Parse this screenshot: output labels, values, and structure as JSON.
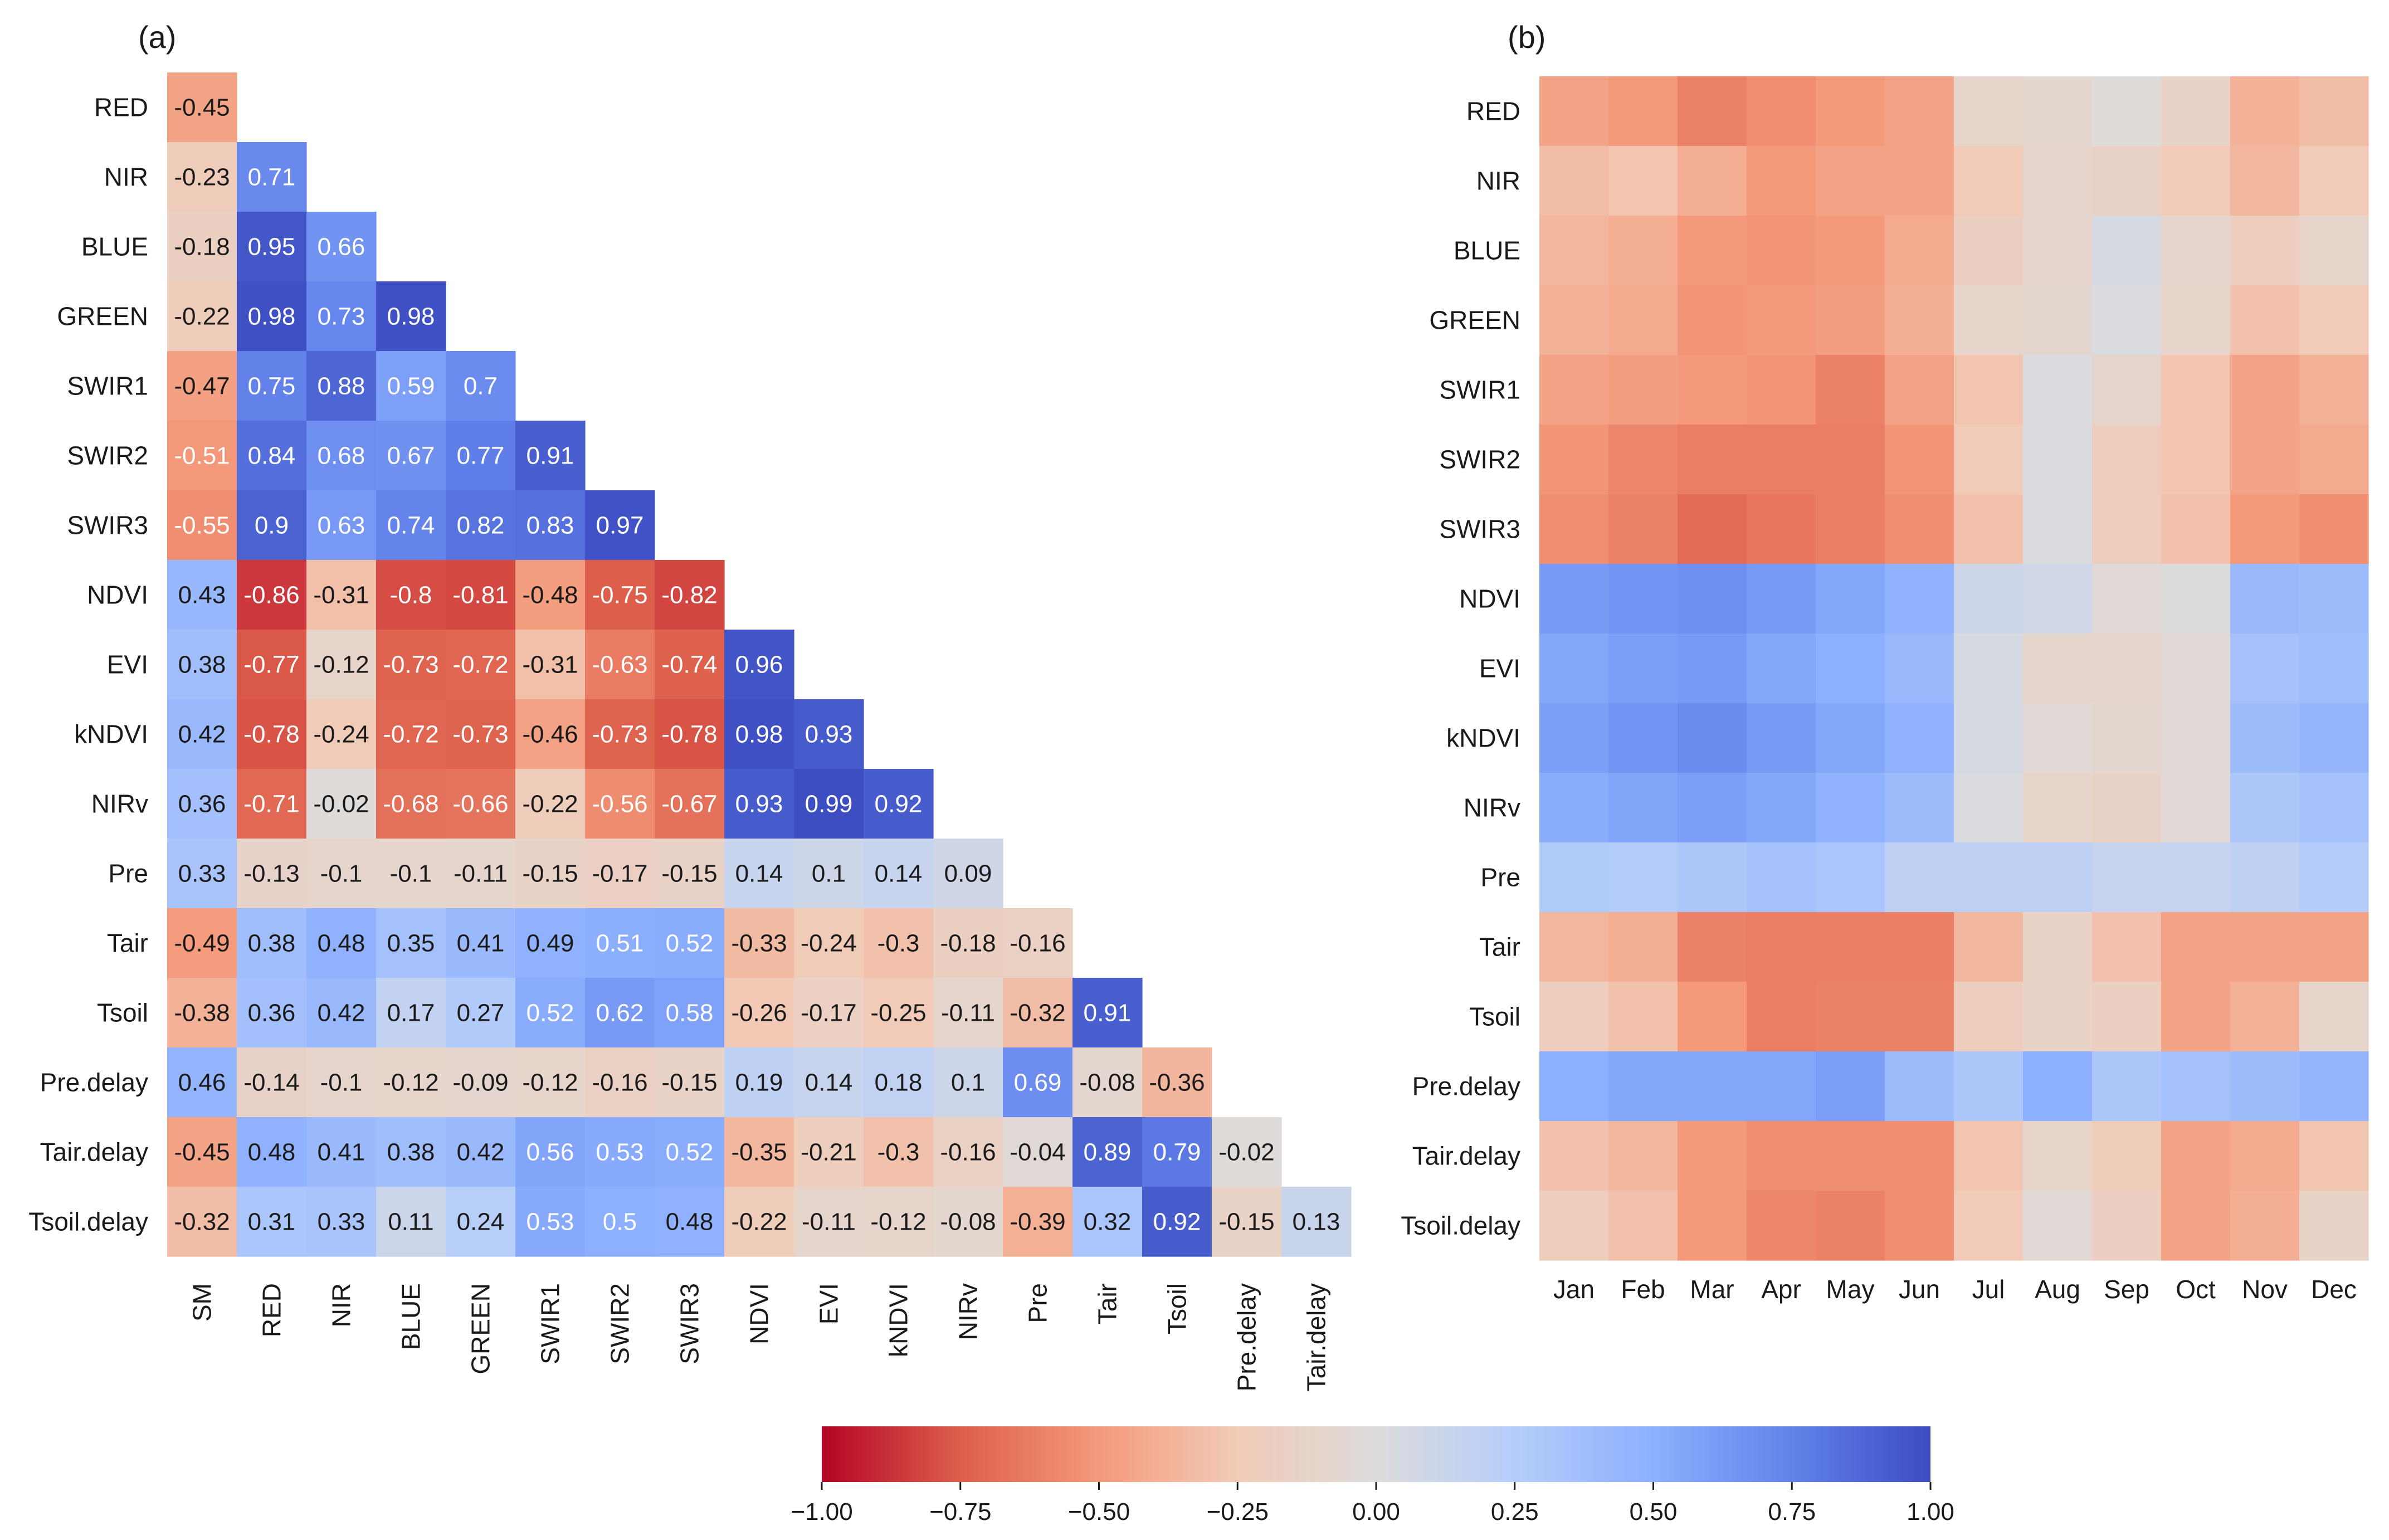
{
  "chart_data": [
    {
      "type": "heatmap",
      "panel_label": "(a)",
      "title": "",
      "subtitle": "",
      "xlabel": "",
      "ylabel": "",
      "shape": "lower-triangle",
      "row_labels": [
        "RED",
        "NIR",
        "BLUE",
        "GREEN",
        "SWIR1",
        "SWIR2",
        "SWIR3",
        "NDVI",
        "EVI",
        "kNDVI",
        "NIRv",
        "Pre",
        "Tair",
        "Tsoil",
        "Pre.delay",
        "Tair.delay",
        "Tsoil.delay"
      ],
      "col_labels": [
        "SM",
        "RED",
        "NIR",
        "BLUE",
        "GREEN",
        "SWIR1",
        "SWIR2",
        "SWIR3",
        "NDVI",
        "EVI",
        "kNDVI",
        "NIRv",
        "Pre",
        "Tair",
        "Tsoil",
        "Pre.delay",
        "Tair.delay"
      ],
      "values": [
        [
          -0.45
        ],
        [
          -0.23,
          0.71
        ],
        [
          -0.18,
          0.95,
          0.66
        ],
        [
          -0.22,
          0.98,
          0.73,
          0.98
        ],
        [
          -0.47,
          0.75,
          0.88,
          0.59,
          0.7
        ],
        [
          -0.51,
          0.84,
          0.68,
          0.67,
          0.77,
          0.91
        ],
        [
          -0.55,
          0.9,
          0.63,
          0.74,
          0.82,
          0.83,
          0.97
        ],
        [
          0.43,
          -0.86,
          -0.31,
          -0.8,
          -0.81,
          -0.48,
          -0.75,
          -0.82
        ],
        [
          0.38,
          -0.77,
          -0.12,
          -0.73,
          -0.72,
          -0.31,
          -0.63,
          -0.74,
          0.96
        ],
        [
          0.42,
          -0.78,
          -0.24,
          -0.72,
          -0.73,
          -0.46,
          -0.73,
          -0.78,
          0.98,
          0.93
        ],
        [
          0.36,
          -0.71,
          -0.02,
          -0.68,
          -0.66,
          -0.22,
          -0.56,
          -0.67,
          0.93,
          0.99,
          0.92
        ],
        [
          0.33,
          -0.13,
          -0.1,
          -0.1,
          -0.11,
          -0.15,
          -0.17,
          -0.15,
          0.14,
          0.1,
          0.14,
          0.09
        ],
        [
          -0.49,
          0.38,
          0.48,
          0.35,
          0.41,
          0.49,
          0.51,
          0.52,
          -0.33,
          -0.24,
          -0.3,
          -0.18,
          -0.16
        ],
        [
          -0.38,
          0.36,
          0.42,
          0.17,
          0.27,
          0.52,
          0.62,
          0.58,
          -0.26,
          -0.17,
          -0.25,
          -0.11,
          -0.32,
          0.91
        ],
        [
          0.46,
          -0.14,
          -0.1,
          -0.12,
          -0.09,
          -0.12,
          -0.16,
          -0.15,
          0.19,
          0.14,
          0.18,
          0.1,
          0.69,
          -0.08,
          -0.36
        ],
        [
          -0.45,
          0.48,
          0.41,
          0.38,
          0.42,
          0.56,
          0.53,
          0.52,
          -0.35,
          -0.21,
          -0.3,
          -0.16,
          -0.04,
          0.89,
          0.79,
          -0.02
        ],
        [
          -0.32,
          0.31,
          0.33,
          0.11,
          0.24,
          0.53,
          0.5,
          0.48,
          -0.22,
          -0.11,
          -0.12,
          -0.08,
          -0.39,
          0.32,
          0.92,
          -0.15,
          0.13
        ]
      ],
      "annotated": true
    },
    {
      "type": "heatmap",
      "panel_label": "(b)",
      "title": "",
      "subtitle": "",
      "xlabel": "",
      "ylabel": "",
      "row_labels": [
        "RED",
        "NIR",
        "BLUE",
        "GREEN",
        "SWIR1",
        "SWIR2",
        "SWIR3",
        "NDVI",
        "EVI",
        "kNDVI",
        "NIRv",
        "Pre",
        "Tair",
        "Tsoil",
        "Pre.delay",
        "Tair.delay",
        "Tsoil.delay"
      ],
      "col_labels": [
        "Jan",
        "Feb",
        "Mar",
        "Apr",
        "May",
        "Jun",
        "Jul",
        "Aug",
        "Sep",
        "Oct",
        "Nov",
        "Dec"
      ],
      "values": [
        [
          -0.45,
          -0.5,
          -0.6,
          -0.55,
          -0.5,
          -0.45,
          -0.12,
          -0.08,
          -0.02,
          -0.15,
          -0.38,
          -0.32
        ],
        [
          -0.32,
          -0.28,
          -0.4,
          -0.5,
          -0.45,
          -0.45,
          -0.25,
          -0.1,
          -0.15,
          -0.25,
          -0.35,
          -0.25
        ],
        [
          -0.35,
          -0.4,
          -0.5,
          -0.52,
          -0.5,
          -0.42,
          -0.18,
          -0.1,
          0.05,
          -0.1,
          -0.2,
          -0.12
        ],
        [
          -0.38,
          -0.42,
          -0.52,
          -0.5,
          -0.48,
          -0.4,
          -0.12,
          -0.08,
          0.02,
          -0.12,
          -0.3,
          -0.25
        ],
        [
          -0.45,
          -0.48,
          -0.5,
          -0.52,
          -0.6,
          -0.45,
          -0.28,
          0.02,
          -0.1,
          -0.28,
          -0.45,
          -0.38
        ],
        [
          -0.52,
          -0.58,
          -0.62,
          -0.62,
          -0.62,
          -0.52,
          -0.25,
          0.02,
          -0.2,
          -0.28,
          -0.45,
          -0.42
        ],
        [
          -0.55,
          -0.6,
          -0.7,
          -0.65,
          -0.62,
          -0.55,
          -0.3,
          0.02,
          -0.2,
          -0.3,
          -0.5,
          -0.55
        ],
        [
          0.62,
          0.65,
          0.68,
          0.62,
          0.55,
          0.48,
          0.1,
          0.08,
          -0.05,
          0.0,
          0.42,
          0.4
        ],
        [
          0.55,
          0.6,
          0.62,
          0.55,
          0.5,
          0.42,
          0.05,
          -0.1,
          -0.1,
          -0.05,
          0.35,
          0.38
        ],
        [
          0.6,
          0.65,
          0.7,
          0.62,
          0.55,
          0.48,
          0.05,
          -0.05,
          -0.08,
          -0.05,
          0.4,
          0.45
        ],
        [
          0.52,
          0.56,
          0.6,
          0.55,
          0.48,
          0.4,
          0.02,
          -0.12,
          -0.15,
          -0.05,
          0.3,
          0.35
        ],
        [
          0.28,
          0.26,
          0.3,
          0.35,
          0.32,
          0.2,
          0.2,
          0.2,
          0.15,
          0.15,
          0.2,
          0.25
        ],
        [
          -0.35,
          -0.4,
          -0.6,
          -0.62,
          -0.62,
          -0.62,
          -0.35,
          -0.15,
          -0.3,
          -0.45,
          -0.45,
          -0.45
        ],
        [
          -0.2,
          -0.3,
          -0.5,
          -0.62,
          -0.6,
          -0.6,
          -0.2,
          -0.15,
          -0.18,
          -0.45,
          -0.38,
          -0.12
        ],
        [
          0.5,
          0.55,
          0.55,
          0.55,
          0.6,
          0.4,
          0.3,
          0.5,
          0.3,
          0.35,
          0.4,
          0.45
        ],
        [
          -0.3,
          -0.35,
          -0.5,
          -0.55,
          -0.55,
          -0.55,
          -0.28,
          -0.12,
          -0.22,
          -0.45,
          -0.42,
          -0.28
        ],
        [
          -0.2,
          -0.3,
          -0.5,
          -0.58,
          -0.6,
          -0.55,
          -0.25,
          -0.05,
          -0.18,
          -0.45,
          -0.4,
          -0.15
        ]
      ],
      "annotated": false
    }
  ],
  "colorbar": {
    "colormap": "coolwarm_r",
    "range": [
      -1.0,
      1.0
    ],
    "ticks": [
      "−1.00",
      "−0.75",
      "−0.50",
      "−0.25",
      "0.00",
      "0.25",
      "0.50",
      "0.75",
      "1.00"
    ]
  }
}
